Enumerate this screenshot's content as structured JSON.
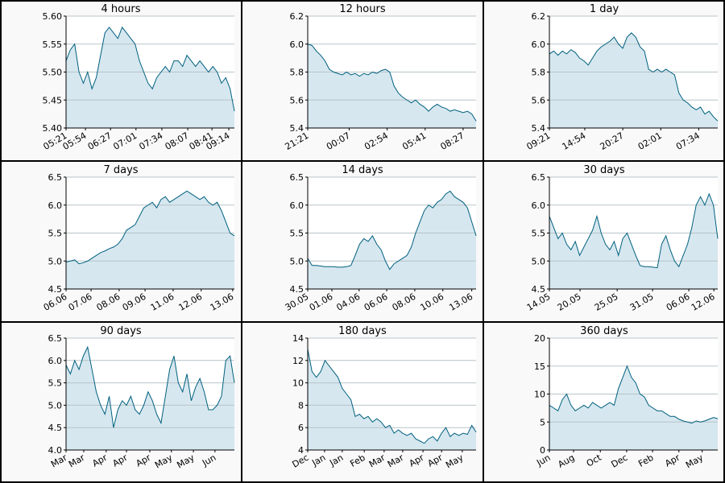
{
  "chart_data": [
    {
      "type": "area",
      "title": "4 hours",
      "color": "#00607f",
      "fill": "#d6e7ef",
      "grid": true,
      "values": [
        5.52,
        5.54,
        5.55,
        5.5,
        5.48,
        5.5,
        5.47,
        5.49,
        5.53,
        5.57,
        5.58,
        5.57,
        5.56,
        5.58,
        5.57,
        5.56,
        5.55,
        5.52,
        5.5,
        5.48,
        5.47,
        5.49,
        5.5,
        5.51,
        5.5,
        5.52,
        5.52,
        5.51,
        5.53,
        5.52,
        5.51,
        5.52,
        5.51,
        5.5,
        5.51,
        5.5,
        5.48,
        5.49,
        5.47,
        5.43
      ],
      "xlim": [
        0,
        39
      ],
      "xticks": [
        {
          "value": 0,
          "label": "05:21"
        },
        {
          "value": 4.5,
          "label": "05:54"
        },
        {
          "value": 10.3,
          "label": "06:27"
        },
        {
          "value": 16.2,
          "label": "07:01"
        },
        {
          "value": 22.2,
          "label": "07:34"
        },
        {
          "value": 28.2,
          "label": "08:07"
        },
        {
          "value": 33.8,
          "label": "08:41"
        },
        {
          "value": 37.7,
          "label": "09:14"
        }
      ],
      "ylim": [
        5.4,
        5.6
      ],
      "yticks": [
        {
          "value": 5.4,
          "label": "5.40"
        },
        5.45,
        {
          "value": 5.5,
          "label": "5.50"
        },
        5.55,
        {
          "value": 5.6,
          "label": "5.60"
        }
      ]
    },
    {
      "type": "area",
      "title": "12 hours",
      "color": "#00607f",
      "fill": "#d6e7ef",
      "grid": true,
      "values": [
        6.0,
        5.99,
        5.95,
        5.92,
        5.88,
        5.82,
        5.8,
        5.79,
        5.78,
        5.8,
        5.78,
        5.79,
        5.77,
        5.79,
        5.78,
        5.8,
        5.79,
        5.81,
        5.82,
        5.8,
        5.7,
        5.65,
        5.62,
        5.6,
        5.58,
        5.6,
        5.57,
        5.55,
        5.52,
        5.55,
        5.57,
        5.55,
        5.54,
        5.52,
        5.53,
        5.52,
        5.51,
        5.52,
        5.5,
        5.45
      ],
      "xlim": [
        0,
        39
      ],
      "xticks": [
        {
          "value": 0,
          "label": "21:21"
        },
        {
          "value": 9.6,
          "label": "00:07"
        },
        {
          "value": 18.4,
          "label": "02:54"
        },
        {
          "value": 27.2,
          "label": "05:41"
        },
        {
          "value": 36.0,
          "label": "08:27"
        }
      ],
      "ylim": [
        5.4,
        6.2
      ],
      "yticks": [
        5.4,
        5.6,
        5.8,
        {
          "value": 6.0,
          "label": "6.0"
        },
        6.2
      ]
    },
    {
      "type": "area",
      "title": "1 day",
      "color": "#00607f",
      "fill": "#d6e7ef",
      "grid": true,
      "values": [
        5.93,
        5.95,
        5.92,
        5.95,
        5.93,
        5.96,
        5.94,
        5.9,
        5.88,
        5.85,
        5.9,
        5.95,
        5.98,
        6.0,
        6.02,
        6.05,
        6.0,
        5.97,
        6.05,
        6.08,
        6.05,
        5.98,
        5.95,
        5.82,
        5.8,
        5.82,
        5.8,
        5.82,
        5.8,
        5.78,
        5.65,
        5.6,
        5.58,
        5.55,
        5.53,
        5.55,
        5.5,
        5.52,
        5.48,
        5.45
      ],
      "xlim": [
        0,
        39
      ],
      "xticks": [
        {
          "value": 0,
          "label": "09:21"
        },
        {
          "value": 8.2,
          "label": "14:54"
        },
        {
          "value": 17.0,
          "label": "20:27"
        },
        {
          "value": 25.8,
          "label": "02:01"
        },
        {
          "value": 34.6,
          "label": "07:34"
        }
      ],
      "ylim": [
        5.4,
        6.2
      ],
      "yticks": [
        5.4,
        5.6,
        5.8,
        {
          "value": 6.0,
          "label": "6.0"
        },
        6.2
      ]
    },
    {
      "type": "area",
      "title": "7 days",
      "color": "#00607f",
      "fill": "#d6e7ef",
      "grid": true,
      "values": [
        4.98,
        5.0,
        5.02,
        4.95,
        4.97,
        5.0,
        5.05,
        5.1,
        5.15,
        5.18,
        5.22,
        5.25,
        5.3,
        5.4,
        5.55,
        5.6,
        5.65,
        5.8,
        5.95,
        6.0,
        6.05,
        5.95,
        6.1,
        6.15,
        6.05,
        6.1,
        6.15,
        6.2,
        6.25,
        6.2,
        6.15,
        6.1,
        6.15,
        6.05,
        6.0,
        6.05,
        5.9,
        5.7,
        5.5,
        5.45
      ],
      "xlim": [
        0,
        39
      ],
      "xticks": [
        {
          "value": 0,
          "label": "06.06"
        },
        {
          "value": 5.8,
          "label": "07.06"
        },
        {
          "value": 12.3,
          "label": "08.06"
        },
        {
          "value": 18.3,
          "label": "09.06"
        },
        {
          "value": 24.8,
          "label": "11.06"
        },
        {
          "value": 31.3,
          "label": "12.06"
        },
        {
          "value": 38.6,
          "label": "13.06"
        }
      ],
      "ylim": [
        4.5,
        6.5
      ],
      "yticks": [
        4.5,
        {
          "value": 5.0,
          "label": "5.0"
        },
        5.5,
        {
          "value": 6.0,
          "label": "6.0"
        },
        6.5
      ]
    },
    {
      "type": "area",
      "title": "14 days",
      "color": "#00607f",
      "fill": "#d6e7ef",
      "grid": true,
      "values": [
        5.05,
        4.92,
        4.92,
        4.91,
        4.9,
        4.9,
        4.9,
        4.89,
        4.89,
        4.9,
        4.92,
        5.1,
        5.3,
        5.4,
        5.35,
        5.45,
        5.3,
        5.2,
        5.0,
        4.85,
        4.95,
        5.0,
        5.05,
        5.1,
        5.25,
        5.5,
        5.7,
        5.9,
        6.0,
        5.95,
        6.05,
        6.1,
        6.2,
        6.25,
        6.15,
        6.1,
        6.05,
        5.95,
        5.7,
        5.45
      ],
      "xlim": [
        0,
        39
      ],
      "xticks": [
        {
          "value": 0,
          "label": "30.05"
        },
        {
          "value": 5.6,
          "label": "01.06"
        },
        {
          "value": 11.9,
          "label": "04.06"
        },
        {
          "value": 18.3,
          "label": "06.06"
        },
        {
          "value": 24.8,
          "label": "08.06"
        },
        {
          "value": 31.3,
          "label": "10.06"
        },
        {
          "value": 38.0,
          "label": "13.06"
        }
      ],
      "ylim": [
        4.5,
        6.5
      ],
      "yticks": [
        4.5,
        {
          "value": 5.0,
          "label": "5.0"
        },
        5.5,
        {
          "value": 6.0,
          "label": "6.0"
        },
        6.5
      ]
    },
    {
      "type": "area",
      "title": "30 days",
      "color": "#00607f",
      "fill": "#d6e7ef",
      "grid": true,
      "values": [
        5.8,
        5.6,
        5.4,
        5.5,
        5.3,
        5.2,
        5.35,
        5.1,
        5.25,
        5.4,
        5.55,
        5.8,
        5.5,
        5.3,
        5.2,
        5.35,
        5.1,
        5.4,
        5.5,
        5.3,
        5.1,
        4.92,
        4.9,
        4.9,
        4.89,
        4.88,
        5.3,
        5.45,
        5.2,
        5.0,
        4.9,
        5.1,
        5.3,
        5.6,
        6.0,
        6.15,
        6.0,
        6.2,
        6.0,
        5.4
      ],
      "xlim": [
        0,
        39
      ],
      "xticks": [
        {
          "value": 0,
          "label": "14.05"
        },
        {
          "value": 7.1,
          "label": "20.05"
        },
        {
          "value": 15.7,
          "label": "25.05"
        },
        {
          "value": 23.9,
          "label": "31.05"
        },
        {
          "value": 32.3,
          "label": "06.06"
        },
        {
          "value": 38.1,
          "label": "12.06"
        }
      ],
      "ylim": [
        4.5,
        6.5
      ],
      "yticks": [
        4.5,
        {
          "value": 5.0,
          "label": "5.0"
        },
        5.5,
        {
          "value": 6.0,
          "label": "6.0"
        },
        6.5
      ]
    },
    {
      "type": "area",
      "title": "90 days",
      "color": "#00607f",
      "fill": "#d6e7ef",
      "grid": true,
      "values": [
        5.9,
        5.7,
        6.0,
        5.8,
        6.1,
        6.3,
        5.8,
        5.3,
        5.0,
        4.8,
        5.2,
        4.5,
        4.9,
        5.1,
        5.0,
        5.2,
        4.9,
        4.8,
        5.0,
        5.3,
        5.1,
        4.8,
        4.6,
        5.2,
        5.8,
        6.1,
        5.5,
        5.3,
        5.7,
        5.1,
        5.4,
        5.6,
        5.3,
        4.9,
        4.9,
        5.0,
        5.2,
        6.0,
        6.1,
        5.5
      ],
      "xlim": [
        0,
        39
      ],
      "xticks": [
        {
          "value": 0,
          "label": "Mar"
        },
        {
          "value": 4.1,
          "label": "Mar"
        },
        {
          "value": 9.3,
          "label": "Apr"
        },
        {
          "value": 14.0,
          "label": "Apr"
        },
        {
          "value": 19.4,
          "label": "Apr"
        },
        {
          "value": 24.4,
          "label": "May"
        },
        {
          "value": 29.5,
          "label": "May"
        },
        {
          "value": 34.5,
          "label": "Jun"
        }
      ],
      "ylim": [
        4.0,
        6.5
      ],
      "yticks": [
        {
          "value": 4.0,
          "label": "4.0"
        },
        4.5,
        {
          "value": 5.0,
          "label": "5.0"
        },
        5.5,
        {
          "value": 6.0,
          "label": "6.0"
        },
        6.5
      ]
    },
    {
      "type": "area",
      "title": "180 days",
      "color": "#00607f",
      "fill": "#d6e7ef",
      "grid": true,
      "values": [
        13,
        11,
        10.5,
        11,
        12,
        11.5,
        11,
        10.5,
        9.5,
        9,
        8.5,
        7,
        7.2,
        6.8,
        7,
        6.5,
        6.8,
        6.5,
        6,
        6.2,
        5.5,
        5.8,
        5.5,
        5.3,
        5.5,
        5,
        4.8,
        4.6,
        5,
        5.2,
        4.8,
        5.5,
        6,
        5.2,
        5.5,
        5.3,
        5.5,
        5.4,
        6.2,
        5.6
      ],
      "xlim": [
        0,
        39
      ],
      "xticks": [
        {
          "value": 0,
          "label": "Dec"
        },
        {
          "value": 3.9,
          "label": "Jan"
        },
        {
          "value": 8.0,
          "label": "Jan"
        },
        {
          "value": 13.1,
          "label": "Feb"
        },
        {
          "value": 17.7,
          "label": "Mar"
        },
        {
          "value": 22.0,
          "label": "Mar"
        },
        {
          "value": 26.7,
          "label": "Apr"
        },
        {
          "value": 31.0,
          "label": "Apr"
        },
        {
          "value": 35.8,
          "label": "May"
        }
      ],
      "ylim": [
        4,
        14
      ],
      "yticks": [
        4,
        6,
        8,
        10,
        12,
        14
      ]
    },
    {
      "type": "area",
      "title": "360 days",
      "color": "#00607f",
      "fill": "#d6e7ef",
      "grid": true,
      "values": [
        8,
        7.5,
        7,
        9,
        10,
        8,
        7,
        7.5,
        8,
        7.5,
        8.5,
        8,
        7.5,
        8,
        8.5,
        8,
        11,
        13,
        15,
        13,
        12,
        10,
        9.5,
        8,
        7.5,
        7,
        7,
        6.5,
        6,
        6,
        5.5,
        5.2,
        5,
        4.8,
        5.2,
        5,
        5.2,
        5.5,
        5.8,
        5.6
      ],
      "xlim": [
        0,
        39
      ],
      "xticks": [
        {
          "value": 0,
          "label": "Jun"
        },
        {
          "value": 5.6,
          "label": "Aug"
        },
        {
          "value": 11.8,
          "label": "Oct"
        },
        {
          "value": 17.9,
          "label": "Dec"
        },
        {
          "value": 23.9,
          "label": "Feb"
        },
        {
          "value": 30.0,
          "label": "Apr"
        },
        {
          "value": 35.4,
          "label": "May"
        }
      ],
      "ylim": [
        0,
        20
      ],
      "yticks": [
        0,
        5,
        10,
        15,
        20
      ]
    }
  ]
}
